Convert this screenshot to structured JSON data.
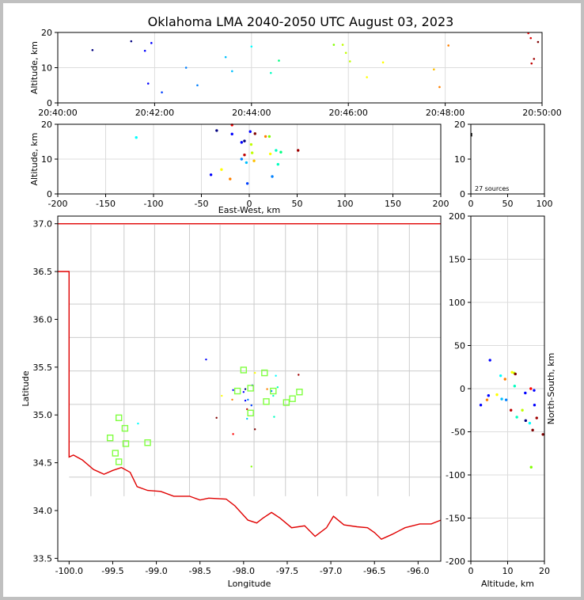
{
  "title": "Oklahoma LMA 2040-2050 UTC August 03, 2023",
  "chart_data": [
    {
      "panel": "time-altitude",
      "type": "scatter",
      "ylabel": "Altitude, km",
      "xlim": [
        "20:40:00",
        "20:50:00"
      ],
      "ylim": [
        0,
        20
      ],
      "xticks": [
        "20:40:00",
        "20:42:00",
        "20:44:00",
        "20:46:00",
        "20:48:00",
        "20:50:00"
      ],
      "yticks": [
        0,
        10,
        20
      ],
      "grid": true,
      "points": [
        {
          "x": "20:40:43",
          "y": 15.0,
          "color": "#000080"
        },
        {
          "x": "20:41:31",
          "y": 17.5,
          "color": "#000080"
        },
        {
          "x": "20:41:48",
          "y": 14.8,
          "color": "#0000ff"
        },
        {
          "x": "20:41:52",
          "y": 5.5,
          "color": "#0000ff"
        },
        {
          "x": "20:41:56",
          "y": 17.0,
          "color": "#0000ff"
        },
        {
          "x": "20:42:09",
          "y": 3.0,
          "color": "#0040ff"
        },
        {
          "x": "20:42:39",
          "y": 10.0,
          "color": "#0080ff"
        },
        {
          "x": "20:42:53",
          "y": 5.0,
          "color": "#0080ff"
        },
        {
          "x": "20:43:28",
          "y": 13.0,
          "color": "#00c0ff"
        },
        {
          "x": "20:43:36",
          "y": 9.0,
          "color": "#00c0ff"
        },
        {
          "x": "20:44:00",
          "y": 16.0,
          "color": "#00ffff"
        },
        {
          "x": "20:44:24",
          "y": 8.5,
          "color": "#00ffc0"
        },
        {
          "x": "20:44:34",
          "y": 12.0,
          "color": "#00ff80"
        },
        {
          "x": "20:45:42",
          "y": 16.5,
          "color": "#80ff00"
        },
        {
          "x": "20:45:53",
          "y": 16.5,
          "color": "#c0ff00"
        },
        {
          "x": "20:45:57",
          "y": 14.2,
          "color": "#c0ff00"
        },
        {
          "x": "20:46:02",
          "y": 11.8,
          "color": "#c0ff00"
        },
        {
          "x": "20:46:23",
          "y": 7.3,
          "color": "#ffff00"
        },
        {
          "x": "20:46:43",
          "y": 11.5,
          "color": "#ffff00"
        },
        {
          "x": "20:47:46",
          "y": 9.5,
          "color": "#ffc000"
        },
        {
          "x": "20:47:53",
          "y": 4.5,
          "color": "#ff8000"
        },
        {
          "x": "20:48:04",
          "y": 16.3,
          "color": "#ff8000"
        },
        {
          "x": "20:49:43",
          "y": 19.8,
          "color": "#ff0000"
        },
        {
          "x": "20:49:46",
          "y": 18.4,
          "color": "#e00000"
        },
        {
          "x": "20:49:47",
          "y": 11.2,
          "color": "#c00000"
        },
        {
          "x": "20:49:50",
          "y": 12.5,
          "color": "#a00000"
        },
        {
          "x": "20:49:55",
          "y": 17.3,
          "color": "#800000"
        }
      ]
    },
    {
      "panel": "east-west-altitude",
      "type": "scatter",
      "xlabel": "East-West, km",
      "ylabel": "Altitude, km",
      "xlim": [
        -200,
        200
      ],
      "ylim": [
        0,
        20
      ],
      "xticks": [
        -200,
        -150,
        -100,
        -50,
        0,
        50,
        100,
        150,
        200
      ],
      "yticks": [
        0,
        10,
        20
      ],
      "grid": true,
      "points": [
        {
          "x": -118,
          "y": 16.2,
          "color": "#00ffff"
        },
        {
          "x": -40,
          "y": 5.5,
          "color": "#0000ff"
        },
        {
          "x": -34,
          "y": 18.2,
          "color": "#000080"
        },
        {
          "x": -29,
          "y": 7.0,
          "color": "#ffff00"
        },
        {
          "x": -20,
          "y": 4.3,
          "color": "#ff8000"
        },
        {
          "x": -18,
          "y": 17.2,
          "color": "#0000ff"
        },
        {
          "x": -18,
          "y": 19.8,
          "color": "#ff0000"
        },
        {
          "x": -8,
          "y": 14.8,
          "color": "#0000ff"
        },
        {
          "x": -8,
          "y": 10.0,
          "color": "#0080ff"
        },
        {
          "x": -5,
          "y": 15.2,
          "color": "#000080"
        },
        {
          "x": -5,
          "y": 11.2,
          "color": "#c00000"
        },
        {
          "x": -3,
          "y": 9.0,
          "color": "#00c0ff"
        },
        {
          "x": -2,
          "y": 3.0,
          "color": "#0040ff"
        },
        {
          "x": 1,
          "y": 17.9,
          "color": "#0000ff"
        },
        {
          "x": 2,
          "y": 14.2,
          "color": "#c0ff00"
        },
        {
          "x": 3,
          "y": 11.8,
          "color": "#c0ff00"
        },
        {
          "x": 5,
          "y": 9.5,
          "color": "#ffc000"
        },
        {
          "x": 6,
          "y": 17.3,
          "color": "#800000"
        },
        {
          "x": 17,
          "y": 16.5,
          "color": "#ff8000"
        },
        {
          "x": 21,
          "y": 16.5,
          "color": "#80ff00"
        },
        {
          "x": 22,
          "y": 11.5,
          "color": "#ffff00"
        },
        {
          "x": 24,
          "y": 5.0,
          "color": "#0080ff"
        },
        {
          "x": 28,
          "y": 12.5,
          "color": "#00ffc0"
        },
        {
          "x": 30,
          "y": 8.5,
          "color": "#00ffc0"
        },
        {
          "x": 33,
          "y": 12.0,
          "color": "#00ff80"
        },
        {
          "x": 51,
          "y": 12.5,
          "color": "#a00000"
        }
      ]
    },
    {
      "panel": "altitude-histogram",
      "type": "line",
      "xlim": [
        0,
        100
      ],
      "ylim": [
        0,
        20
      ],
      "xticks": [
        0,
        50,
        100
      ],
      "yticks": [
        0,
        10,
        20
      ],
      "annotation": "27 sources",
      "points": [
        {
          "x": 1,
          "y": 16.5,
          "color": "#000000"
        },
        {
          "x": 1,
          "y": 17.5,
          "color": "#000000"
        }
      ]
    },
    {
      "panel": "plan-view",
      "type": "scatter",
      "xlabel": "Longitude",
      "ylabel": "Latitude",
      "xlim": [
        -100.13,
        -95.74
      ],
      "ylim": [
        33.47,
        37.08
      ],
      "xticks": [
        -100.0,
        -99.5,
        -99.0,
        -98.5,
        -98.0,
        -97.5,
        -97.0,
        -96.5,
        -96.0
      ],
      "yticks": [
        33.5,
        34.0,
        34.5,
        35.0,
        35.5,
        36.0,
        36.5,
        37.0
      ],
      "grid": false,
      "points": [
        {
          "x": -98.43,
          "y": 35.58,
          "color": "#0000ff"
        },
        {
          "x": -98.31,
          "y": 34.97,
          "color": "#800000"
        },
        {
          "x": -98.12,
          "y": 34.8,
          "color": "#ff0000"
        },
        {
          "x": -98.12,
          "y": 35.26,
          "color": "#0000ff"
        },
        {
          "x": -98.13,
          "y": 35.16,
          "color": "#ff8000"
        },
        {
          "x": -98.25,
          "y": 35.2,
          "color": "#ffff00"
        },
        {
          "x": -97.98,
          "y": 35.27,
          "color": "#000080"
        },
        {
          "x": -98.0,
          "y": 35.24,
          "color": "#0000ff"
        },
        {
          "x": -97.98,
          "y": 35.15,
          "color": "#0000ff"
        },
        {
          "x": -97.95,
          "y": 35.16,
          "color": "#0080ff"
        },
        {
          "x": -97.96,
          "y": 34.96,
          "color": "#00c0ff"
        },
        {
          "x": -97.91,
          "y": 35.1,
          "color": "#0040ff"
        },
        {
          "x": -97.96,
          "y": 35.06,
          "color": "#c00000"
        },
        {
          "x": -97.87,
          "y": 35.44,
          "color": "#ffff00"
        },
        {
          "x": -97.9,
          "y": 35.31,
          "color": "#0000ff"
        },
        {
          "x": -97.87,
          "y": 34.85,
          "color": "#800000"
        },
        {
          "x": -97.73,
          "y": 35.27,
          "color": "#ff8000"
        },
        {
          "x": -97.68,
          "y": 35.25,
          "color": "#0080ff"
        },
        {
          "x": -97.66,
          "y": 35.2,
          "color": "#00ffc0"
        },
        {
          "x": -97.65,
          "y": 34.98,
          "color": "#00ffc0"
        },
        {
          "x": -97.63,
          "y": 35.41,
          "color": "#00ffff"
        },
        {
          "x": -97.61,
          "y": 35.29,
          "color": "#00ffc0"
        },
        {
          "x": -97.37,
          "y": 35.42,
          "color": "#a00000"
        },
        {
          "x": -99.21,
          "y": 34.91,
          "color": "#00ffff"
        },
        {
          "x": -97.91,
          "y": 34.46,
          "color": "#80ff00"
        }
      ],
      "station_color": "#80ff40",
      "stations": [
        {
          "x": -99.43,
          "y": 34.97
        },
        {
          "x": -99.36,
          "y": 34.86
        },
        {
          "x": -99.53,
          "y": 34.76
        },
        {
          "x": -99.35,
          "y": 34.7
        },
        {
          "x": -99.47,
          "y": 34.6
        },
        {
          "x": -99.43,
          "y": 34.51
        },
        {
          "x": -99.1,
          "y": 34.71
        },
        {
          "x": -98.0,
          "y": 35.47
        },
        {
          "x": -97.76,
          "y": 35.44
        },
        {
          "x": -98.07,
          "y": 35.25
        },
        {
          "x": -97.92,
          "y": 35.28
        },
        {
          "x": -97.66,
          "y": 35.25
        },
        {
          "x": -97.36,
          "y": 35.24
        },
        {
          "x": -97.74,
          "y": 35.14
        },
        {
          "x": -97.44,
          "y": 35.17
        },
        {
          "x": -97.51,
          "y": 35.13
        },
        {
          "x": -97.92,
          "y": 35.02
        }
      ]
    },
    {
      "panel": "altitude-north-south",
      "type": "scatter",
      "xlabel": "Altitude, km",
      "ylabel": "North-South, km",
      "xlim": [
        0,
        20
      ],
      "ylim": [
        -200,
        200
      ],
      "xticks": [
        0,
        10,
        20
      ],
      "yticks": [
        -200,
        -150,
        -100,
        -50,
        0,
        50,
        100,
        150,
        200
      ],
      "grid": true,
      "points": [
        {
          "x": 2.7,
          "y": -19,
          "color": "#0000ff"
        },
        {
          "x": 4.4,
          "y": -13,
          "color": "#ff8000"
        },
        {
          "x": 4.8,
          "y": -8,
          "color": "#0000ff"
        },
        {
          "x": 5.2,
          "y": 33,
          "color": "#0000ff"
        },
        {
          "x": 7.1,
          "y": -7,
          "color": "#ffff00"
        },
        {
          "x": 8.1,
          "y": 15,
          "color": "#00ffff"
        },
        {
          "x": 8.4,
          "y": -12,
          "color": "#00c0ff"
        },
        {
          "x": 9.3,
          "y": 11,
          "color": "#ff8000"
        },
        {
          "x": 9.6,
          "y": -13,
          "color": "#0080ff"
        },
        {
          "x": 10.9,
          "y": -25,
          "color": "#c00000"
        },
        {
          "x": 11.2,
          "y": 19,
          "color": "#ffff00"
        },
        {
          "x": 11.8,
          "y": 18,
          "color": "#c0ff00"
        },
        {
          "x": 11.9,
          "y": 3,
          "color": "#00ffc0"
        },
        {
          "x": 12.1,
          "y": 17,
          "color": "#800000"
        },
        {
          "x": 12.5,
          "y": -33,
          "color": "#00ffc0"
        },
        {
          "x": 14.0,
          "y": -25,
          "color": "#c0ff00"
        },
        {
          "x": 14.8,
          "y": -5,
          "color": "#0000ff"
        },
        {
          "x": 14.9,
          "y": -37,
          "color": "#000080"
        },
        {
          "x": 16.0,
          "y": -40,
          "color": "#00ffff"
        },
        {
          "x": 16.3,
          "y": 0,
          "color": "#ff0000"
        },
        {
          "x": 16.4,
          "y": -91,
          "color": "#80ff00"
        },
        {
          "x": 16.8,
          "y": -48,
          "color": "#800000"
        },
        {
          "x": 17.2,
          "y": -2,
          "color": "#0000ff"
        },
        {
          "x": 17.3,
          "y": -19,
          "color": "#0000ff"
        },
        {
          "x": 17.9,
          "y": -34,
          "color": "#a00000"
        },
        {
          "x": 19.6,
          "y": -53,
          "color": "#800000"
        }
      ]
    }
  ]
}
